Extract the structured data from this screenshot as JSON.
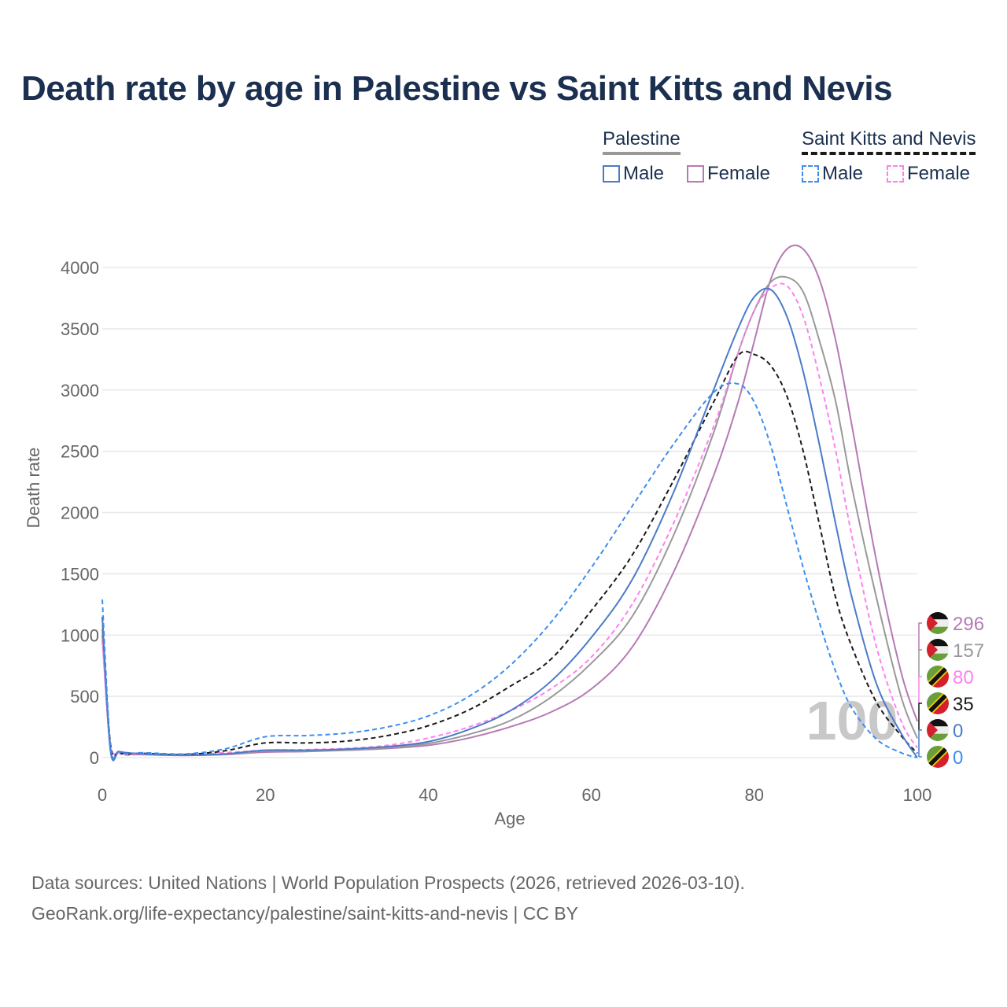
{
  "title": "Death rate by age in Palestine vs Saint Kitts and Nevis",
  "legend": {
    "groups": [
      {
        "name": "Palestine",
        "items": [
          "Male",
          "Female"
        ]
      },
      {
        "name": "Saint Kitts and Nevis",
        "items": [
          "Male",
          "Female"
        ]
      }
    ]
  },
  "watermark": "100",
  "source": {
    "line1": "Data sources: United Nations | World Population Prospects (2026, retrieved 2026-03-10).",
    "line2": "GeoRank.org/life-expectancy/palestine/saint-kitts-and-nevis | CC BY"
  },
  "colors": {
    "pal_male": "#4a7bc8",
    "pal_female": "#b57ab5",
    "pal_total": "#999999",
    "skn_male": "#3d8ef0",
    "skn_female": "#ff80f0",
    "skn_total": "#1a1a1a"
  },
  "chart_data": {
    "type": "line",
    "title": "Death rate by age in Palestine vs Saint Kitts and Nevis",
    "xlabel": "Age",
    "ylabel": "Death rate",
    "xlim": [
      0,
      100
    ],
    "ylim": [
      0,
      4000
    ],
    "xticks": [
      0,
      20,
      40,
      60,
      80,
      100
    ],
    "yticks": [
      0,
      500,
      1000,
      1500,
      2000,
      2500,
      3000,
      3500,
      4000
    ],
    "grid": true,
    "x": [
      0,
      1,
      2,
      3,
      5,
      10,
      15,
      20,
      25,
      30,
      35,
      40,
      45,
      50,
      55,
      60,
      65,
      70,
      75,
      78,
      80,
      82,
      84,
      86,
      88,
      90,
      92,
      95,
      98,
      100
    ],
    "series": [
      {
        "key": "pal_female",
        "name": "Palestine Female",
        "country": "palestine",
        "dash": false,
        "end_label": "296",
        "values": [
          1000,
          70,
          40,
          30,
          25,
          18,
          25,
          45,
          50,
          60,
          75,
          100,
          160,
          250,
          370,
          560,
          900,
          1500,
          2300,
          2900,
          3400,
          3900,
          4150,
          4150,
          3900,
          3400,
          2700,
          1600,
          700,
          296
        ]
      },
      {
        "key": "pal_total",
        "name": "Palestine",
        "country": "palestine",
        "dash": false,
        "end_label": "157",
        "values": [
          1050,
          65,
          45,
          35,
          30,
          20,
          28,
          55,
          55,
          62,
          80,
          115,
          190,
          300,
          490,
          770,
          1150,
          1800,
          2650,
          3300,
          3650,
          3880,
          3920,
          3800,
          3400,
          2900,
          2200,
          1300,
          500,
          157
        ]
      },
      {
        "key": "skn_female",
        "name": "Saint Kitts and Nevis Female",
        "country": "skn",
        "dash": true,
        "end_label": "80",
        "values": [
          950,
          120,
          40,
          20,
          25,
          20,
          40,
          60,
          65,
          75,
          100,
          160,
          250,
          380,
          560,
          820,
          1250,
          1900,
          2700,
          3300,
          3650,
          3830,
          3850,
          3600,
          3100,
          2500,
          1800,
          900,
          300,
          80
        ]
      },
      {
        "key": "skn_total",
        "name": "Saint Kitts and Nevis",
        "country": "skn",
        "dash": true,
        "end_label": "35",
        "values": [
          1150,
          110,
          45,
          30,
          35,
          25,
          55,
          120,
          120,
          135,
          180,
          260,
          390,
          580,
          800,
          1200,
          1650,
          2250,
          2900,
          3280,
          3290,
          3200,
          2950,
          2500,
          1900,
          1300,
          900,
          450,
          180,
          35
        ]
      },
      {
        "key": "pal_male",
        "name": "Palestine Male",
        "country": "palestine",
        "dash": false,
        "end_label": "0",
        "values": [
          1150,
          60,
          50,
          40,
          30,
          20,
          30,
          60,
          60,
          70,
          90,
          130,
          230,
          380,
          620,
          980,
          1450,
          2150,
          3000,
          3500,
          3760,
          3820,
          3600,
          3150,
          2550,
          1900,
          1300,
          600,
          200,
          0
        ]
      },
      {
        "key": "skn_male",
        "name": "Saint Kitts and Nevis Male",
        "country": "skn",
        "dash": true,
        "end_label": "0",
        "values": [
          1290,
          100,
          50,
          30,
          40,
          30,
          70,
          170,
          180,
          200,
          250,
          340,
          500,
          750,
          1100,
          1550,
          2050,
          2550,
          2980,
          3050,
          2900,
          2550,
          2050,
          1550,
          1100,
          700,
          400,
          150,
          40,
          0
        ]
      }
    ]
  }
}
